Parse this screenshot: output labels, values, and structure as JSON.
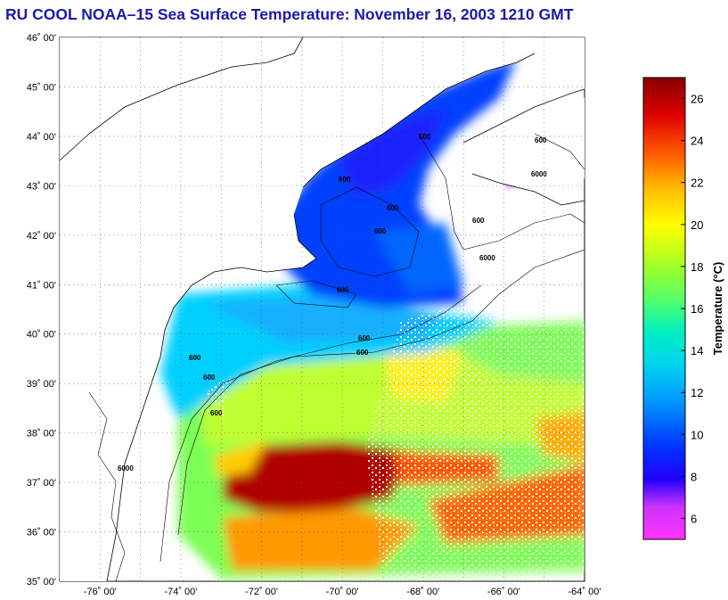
{
  "title": "RU COOL  NOAA–15  Sea Surface Temperature:  November 16, 2003 1210 GMT",
  "map": {
    "lat_labels": [
      "46˚ 00'",
      "45˚ 00'",
      "44˚ 00'",
      "43˚ 00'",
      "42˚ 00'",
      "41˚ 00'",
      "40˚ 00'",
      "39˚ 00'",
      "38˚ 00'",
      "37˚ 00'",
      "36˚ 00'",
      "35˚ 00'"
    ],
    "lon_labels": [
      "-76˚ 00'",
      "-74˚ 00'",
      "-72˚ 00'",
      "-70˚ 00'",
      "-68˚ 00'",
      "-66˚ 00'",
      "-64˚ 00'"
    ],
    "lat_range": [
      35,
      46
    ],
    "lon_range": [
      -77,
      -64
    ],
    "isobath_labels": [
      "600",
      "6000",
      "600",
      "6000",
      "600",
      "600",
      "600",
      "600",
      "6000",
      "600",
      "600",
      "600",
      "600",
      "600",
      "600"
    ]
  },
  "colorbar": {
    "label": "Temperature (°C)",
    "tick_labels": [
      "26",
      "24",
      "22",
      "20",
      "18",
      "16",
      "14",
      "12",
      "10",
      "8",
      "6"
    ],
    "range": [
      5,
      27
    ],
    "colors": [
      "#ff33ff",
      "#bb33ff",
      "#0000ff",
      "#0055ff",
      "#00a0ff",
      "#00e5e5",
      "#33ff99",
      "#99ff33",
      "#ffff00",
      "#ffaa00",
      "#ff4400",
      "#d40000",
      "#8b0000"
    ]
  }
}
